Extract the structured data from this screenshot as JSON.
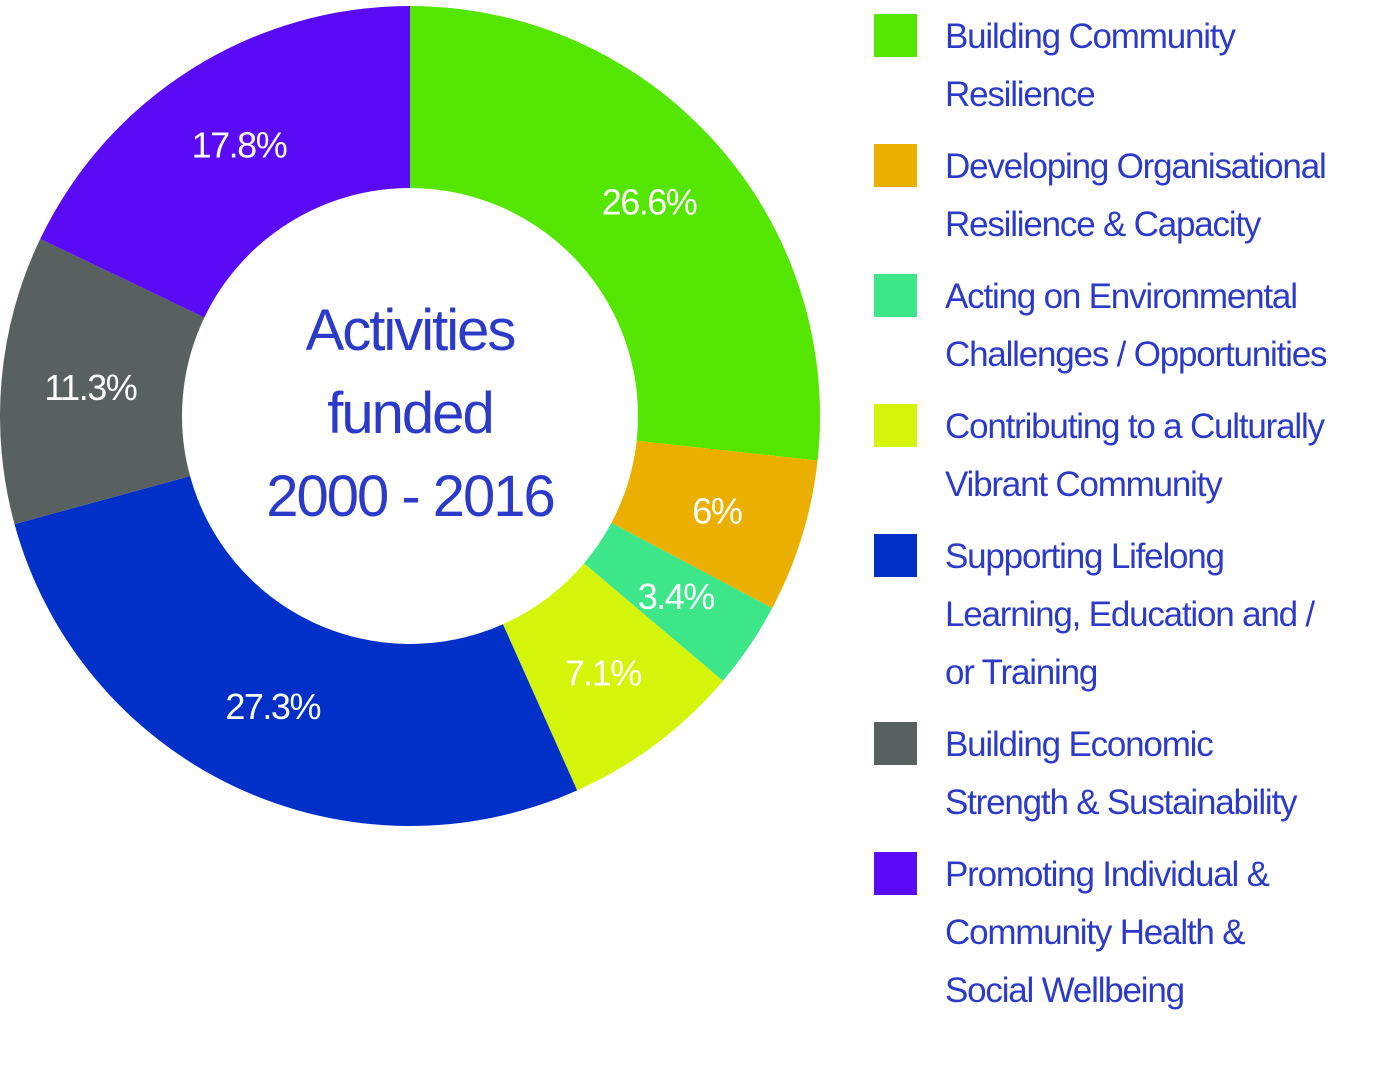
{
  "chart_data": {
    "type": "pie",
    "variant": "donut",
    "title": "Activities funded 2000 - 2016",
    "title_lines": [
      "Activities",
      "funded",
      "2000 - 2016"
    ],
    "slices": [
      {
        "name": "Building Community Resilience",
        "legend_lines": "Building Community\nResilience",
        "value": 26.6,
        "label": "26.6%",
        "color": "#55e600"
      },
      {
        "name": "Developing Organisational Resilience & Capacity",
        "legend_lines": "Developing Organisational\nResilience & Capacity",
        "value": 6,
        "label": "6%",
        "color": "#ebaf00"
      },
      {
        "name": "Acting on Environmental Challenges / Opportunities",
        "legend_lines": "Acting on Environmental\nChallenges / Opportunities",
        "value": 3.4,
        "label": "3.4%",
        "color": "#3ee68a"
      },
      {
        "name": "Contributing to a Culturally Vibrant Community",
        "legend_lines": "Contributing to a Culturally\nVibrant Community",
        "value": 7.1,
        "label": "7.1%",
        "color": "#d4f50a"
      },
      {
        "name": "Supporting Lifelong Learning, Education and / or Training",
        "legend_lines": "Supporting Lifelong\nLearning, Education and /\nor Training",
        "value": 27.3,
        "label": "27.3%",
        "color": "#0030c8"
      },
      {
        "name": "Building Economic Strength & Sustainability",
        "legend_lines": "Building Economic\nStrength & Sustainability",
        "value": 11.3,
        "label": "11.3%",
        "color": "#58615f"
      },
      {
        "name": "Promoting Individual & Community Health & Social Wellbeing",
        "legend_lines": "Promoting Individual &\nCommunity Health &\nSocial Wellbeing",
        "value": 17.8,
        "label": "17.8%",
        "color": "#5a0af5"
      }
    ],
    "start_angle": "12 o'clock",
    "direction": "clockwise",
    "legend_placement": "right",
    "label_color": "#ffffff",
    "text_color": "#2b3ac8"
  }
}
